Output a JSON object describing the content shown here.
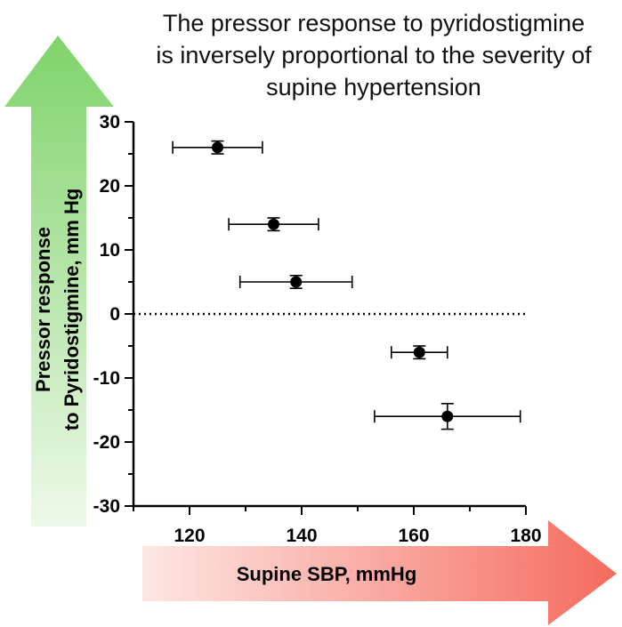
{
  "chart_data": {
    "type": "scatter",
    "title_lines": [
      "The pressor response to pyridostigmine",
      "is inversely proportional to the severity of",
      "supine hypertension"
    ],
    "xlabel": "Supine SBP, mmHg",
    "ylabel_lines": [
      "Pressor response",
      "to Pyridostigmine, mm Hg"
    ],
    "xlim": [
      110,
      180
    ],
    "ylim": [
      -30,
      30
    ],
    "x_ticks": [
      120,
      140,
      160,
      180
    ],
    "y_ticks": [
      30,
      20,
      10,
      0,
      -10,
      -20,
      -30
    ],
    "reference_line": {
      "y": 0,
      "style": "dotted"
    },
    "points": [
      {
        "x": 125,
        "y": 26,
        "x_err_low": 117,
        "x_err_high": 133,
        "y_err_low": 25,
        "y_err_high": 27
      },
      {
        "x": 135,
        "y": 14,
        "x_err_low": 127,
        "x_err_high": 143,
        "y_err_low": 13,
        "y_err_high": 15
      },
      {
        "x": 139,
        "y": 5,
        "x_err_low": 129,
        "x_err_high": 149,
        "y_err_low": 4,
        "y_err_high": 6
      },
      {
        "x": 161,
        "y": -6,
        "x_err_low": 156,
        "x_err_high": 166,
        "y_err_low": -7,
        "y_err_high": -5
      },
      {
        "x": 166,
        "y": -16,
        "x_err_low": 153,
        "x_err_high": 179,
        "y_err_low": -18,
        "y_err_high": -14
      }
    ],
    "grid": false,
    "colors": {
      "marker": "#000000",
      "up_arrow_top": "#7fd36a",
      "up_arrow_bottom": "#eef9ea",
      "right_arrow_left": "#fde7e4",
      "right_arrow_right": "#f56b5e"
    }
  }
}
